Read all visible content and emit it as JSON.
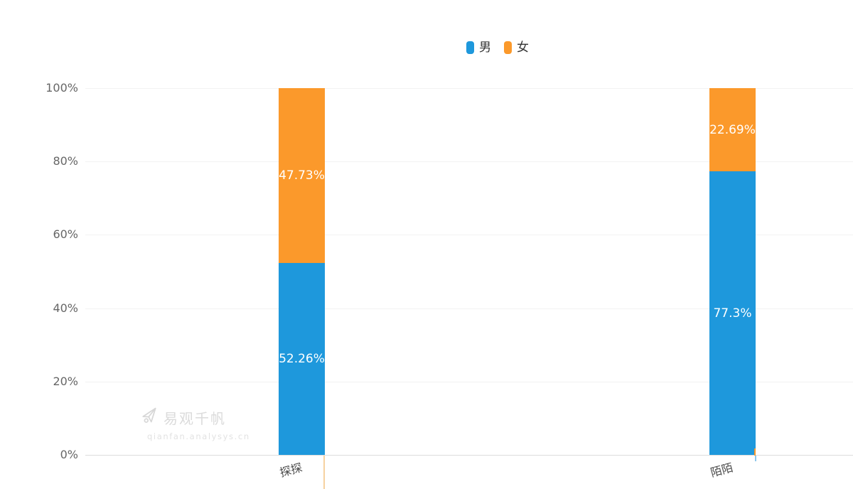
{
  "watermark": {
    "title": "易观千帆",
    "subtitle": "qianfan.analysys.cn"
  },
  "chart_data": {
    "type": "bar",
    "stacked": true,
    "orientation": "vertical",
    "title": "",
    "xlabel": "",
    "ylabel": "",
    "categories": [
      "探探",
      "陌陌"
    ],
    "series": [
      {
        "name": "男",
        "color": "#1E98DC",
        "values": [
          52.26,
          77.3
        ],
        "value_labels": [
          "52.26%",
          "77.3%"
        ]
      },
      {
        "name": "女",
        "color": "#FB992B",
        "values": [
          47.73,
          22.69
        ],
        "value_labels": [
          "47.73%",
          "22.69%"
        ]
      }
    ],
    "ylim": [
      0,
      100
    ],
    "yticks": [
      0,
      20,
      40,
      60,
      80,
      100
    ],
    "ytick_labels": [
      "0%",
      "20%",
      "40%",
      "60%",
      "80%",
      "100%"
    ],
    "grid": true,
    "legend_position": "top-center",
    "value_label_color": "#FFFFFF",
    "background": "#FFFFFF"
  }
}
